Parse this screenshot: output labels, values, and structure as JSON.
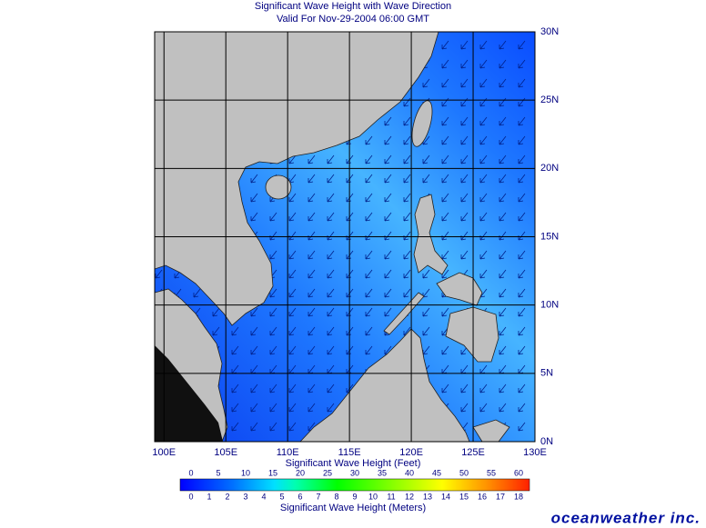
{
  "header": {
    "title": "Significant Wave Height with Wave Direction",
    "subtitle": "Valid For Nov-29-2004 06:00 GMT"
  },
  "map": {
    "xticks": [
      {
        "value": 100,
        "label": "100E"
      },
      {
        "value": 105,
        "label": "105E"
      },
      {
        "value": 110,
        "label": "110E"
      },
      {
        "value": 115,
        "label": "115E"
      },
      {
        "value": 120,
        "label": "120E"
      },
      {
        "value": 125,
        "label": "125E"
      },
      {
        "value": 130,
        "label": "130E"
      }
    ],
    "yticks": [
      {
        "value": 0,
        "label": "0N"
      },
      {
        "value": 5,
        "label": "5N"
      },
      {
        "value": 10,
        "label": "10N"
      },
      {
        "value": 15,
        "label": "15N"
      },
      {
        "value": 20,
        "label": "20N"
      },
      {
        "value": 25,
        "label": "25N"
      },
      {
        "value": 30,
        "label": "30N"
      }
    ]
  },
  "colorbar": {
    "feet_title": "Significant Wave Height (Feet)",
    "feet_ticks": [
      0,
      5,
      10,
      15,
      20,
      25,
      30,
      35,
      40,
      45,
      50,
      55,
      60
    ],
    "meters_title": "Significant Wave Height (Meters)",
    "meters_ticks": [
      0,
      1,
      2,
      3,
      4,
      5,
      6,
      7,
      8,
      9,
      10,
      11,
      12,
      13,
      14,
      15,
      16,
      17,
      18
    ]
  },
  "logo": "oceanweather inc."
}
